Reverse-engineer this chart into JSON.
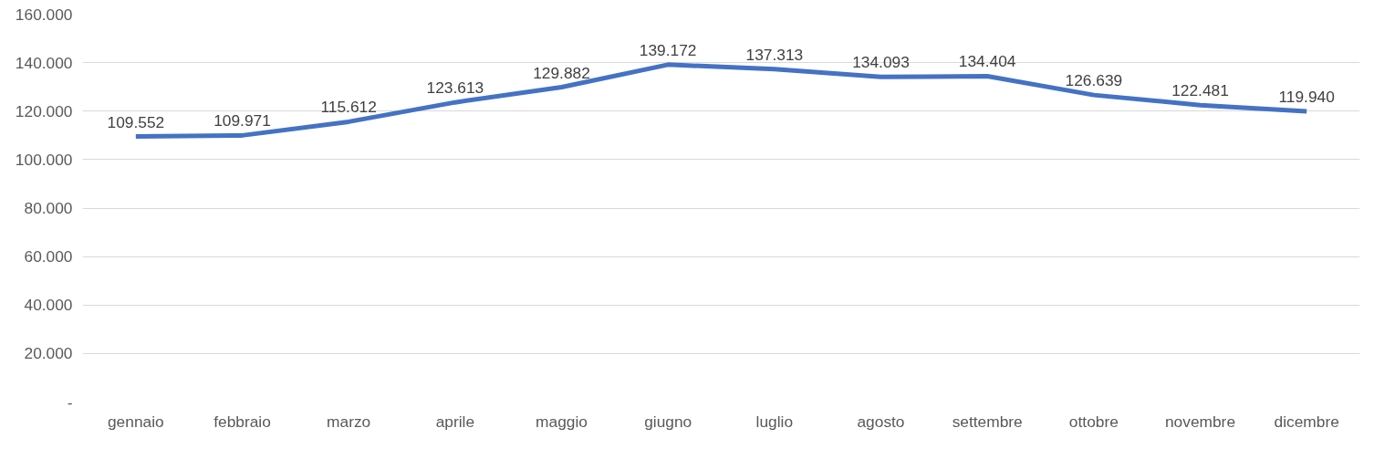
{
  "chart_data": {
    "type": "line",
    "categories": [
      "gennaio",
      "febbraio",
      "marzo",
      "aprile",
      "maggio",
      "giugno",
      "luglio",
      "agosto",
      "settembre",
      "ottobre",
      "novembre",
      "dicembre"
    ],
    "series": [
      {
        "color": "#4472c4",
        "values": [
          109552,
          109971,
          115612,
          123613,
          129882,
          139172,
          137313,
          134093,
          134404,
          126639,
          122481,
          119940
        ],
        "value_labels": [
          "109.552",
          "109.971",
          "115.612",
          "123.613",
          "129.882",
          "139.172",
          "137.313",
          "134.093",
          "134.404",
          "126.639",
          "122.481",
          "119.940"
        ]
      }
    ],
    "ylim": [
      0,
      160000
    ],
    "yticks": [
      {
        "value": 0,
        "label": "-"
      },
      {
        "value": 20000,
        "label": "20.000"
      },
      {
        "value": 40000,
        "label": "40.000"
      },
      {
        "value": 60000,
        "label": "60.000"
      },
      {
        "value": 80000,
        "label": "80.000"
      },
      {
        "value": 100000,
        "label": "100.000"
      },
      {
        "value": 120000,
        "label": "120.000"
      },
      {
        "value": 140000,
        "label": "140.000"
      },
      {
        "value": 160000,
        "label": "160.000"
      }
    ],
    "grid": "y",
    "marker": "none",
    "line_style": "solid"
  }
}
